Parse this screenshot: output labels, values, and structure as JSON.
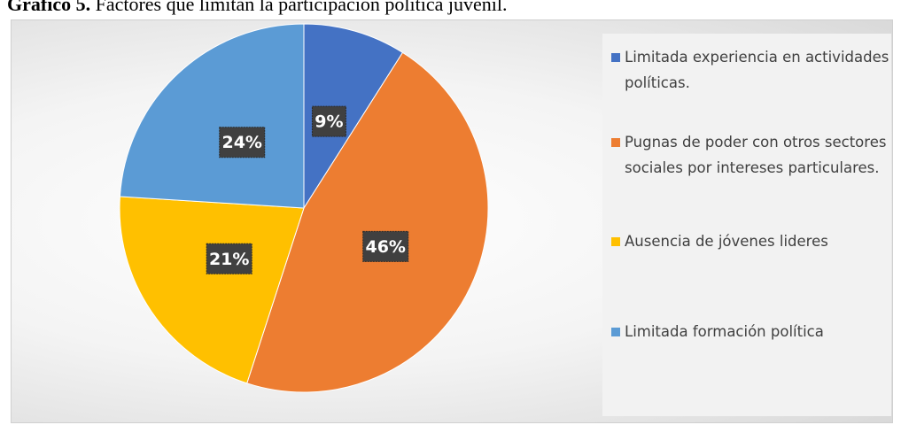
{
  "chart_data": {
    "type": "pie",
    "title_label": "Gráfico 5.",
    "title": "Factores que limitan la participación política juvenil.",
    "categories": [
      "Limitada experiencia en actividades políticas.",
      "Pugnas de poder con otros sectores sociales por intereses particulares.",
      "Ausencia de jóvenes lideres",
      "Limitada formación política"
    ],
    "values": [
      9,
      46,
      21,
      24
    ],
    "value_labels": [
      "9%",
      "46%",
      "21%",
      "24%"
    ],
    "colors": [
      "#4472c4",
      "#ed7d31",
      "#ffc000",
      "#5b9bd5"
    ],
    "legend": "right"
  }
}
